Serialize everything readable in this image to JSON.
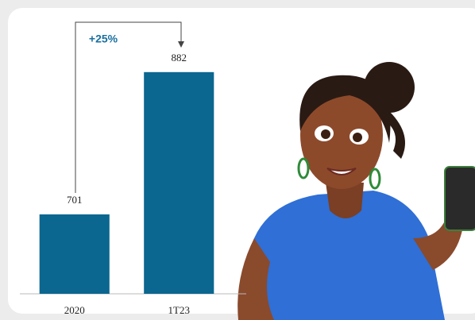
{
  "chart_data": {
    "type": "bar",
    "categories": [
      "2020",
      "1T23"
    ],
    "values": [
      701,
      882
    ],
    "color": "#0b6690",
    "annotation": "+25%",
    "ylim": [
      600,
      900
    ]
  }
}
